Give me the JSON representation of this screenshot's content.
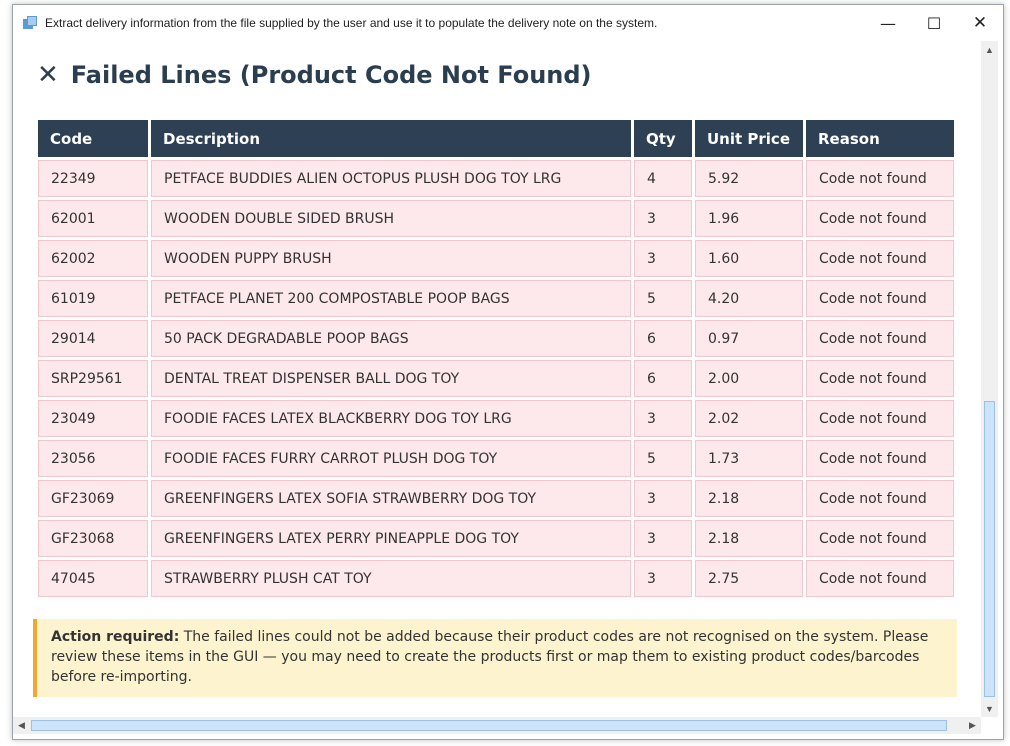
{
  "window": {
    "title": "Extract delivery information from the file supplied by the user and use it to populate the delivery note on the system."
  },
  "controls": {
    "minimize": "—",
    "maximize": "☐",
    "close": "✕"
  },
  "heading": {
    "icon": "x-icon",
    "text": "Failed Lines (Product Code Not Found)"
  },
  "table": {
    "headers": [
      "Code",
      "Description",
      "Qty",
      "Unit Price",
      "Reason"
    ],
    "rows": [
      [
        "22349",
        "PETFACE BUDDIES ALIEN OCTOPUS PLUSH DOG TOY LRG",
        "4",
        "5.92",
        "Code not found"
      ],
      [
        "62001",
        "WOODEN DOUBLE SIDED BRUSH",
        "3",
        "1.96",
        "Code not found"
      ],
      [
        "62002",
        "WOODEN PUPPY BRUSH",
        "3",
        "1.60",
        "Code not found"
      ],
      [
        "61019",
        "PETFACE PLANET 200 COMPOSTABLE POOP BAGS",
        "5",
        "4.20",
        "Code not found"
      ],
      [
        "29014",
        "50 PACK DEGRADABLE POOP BAGS",
        "6",
        "0.97",
        "Code not found"
      ],
      [
        "SRP29561",
        "DENTAL TREAT DISPENSER BALL DOG TOY",
        "6",
        "2.00",
        "Code not found"
      ],
      [
        "23049",
        "FOODIE FACES LATEX BLACKBERRY DOG TOY LRG",
        "3",
        "2.02",
        "Code not found"
      ],
      [
        "23056",
        "FOODIE FACES FURRY CARROT PLUSH DOG TOY",
        "5",
        "1.73",
        "Code not found"
      ],
      [
        "GF23069",
        "GREENFINGERS LATEX SOFIA STRAWBERRY DOG TOY",
        "3",
        "2.18",
        "Code not found"
      ],
      [
        "GF23068",
        "GREENFINGERS LATEX PERRY PINEAPPLE DOG TOY",
        "3",
        "2.18",
        "Code not found"
      ],
      [
        "47045",
        "STRAWBERRY PLUSH CAT TOY",
        "3",
        "2.75",
        "Code not found"
      ]
    ]
  },
  "alert": {
    "label": "Action required:",
    "text": " The failed lines could not be added because their product codes are not recognised on the system. Please review these items in the GUI — you may need to create the products first or map them to existing product codes/barcodes before re-importing."
  },
  "colors": {
    "header_bg": "#2e4053",
    "row_bg": "#fde9ec",
    "alert_bg": "#fdf3cf",
    "alert_accent": "#f0a830",
    "heading": "#2b3e50"
  }
}
